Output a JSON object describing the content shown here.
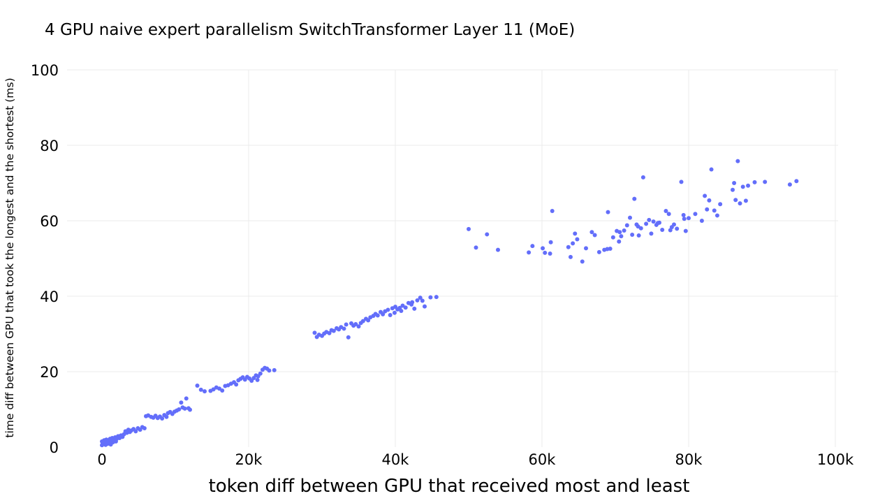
{
  "chart_data": {
    "type": "scatter",
    "title": "4 GPU naive expert parallelism SwitchTransformer Layer 11 (MoE)",
    "xlabel": "token diff between GPU that received most and least",
    "ylabel": "time diff between GPU that took the longest and the shortest (ms)",
    "xlim": [
      -5000,
      100000
    ],
    "ylim": [
      0,
      100
    ],
    "x_ticks": [
      0,
      20000,
      40000,
      60000,
      80000,
      100000
    ],
    "x_tick_labels": [
      "0",
      "20k",
      "40k",
      "60k",
      "80k",
      "100k"
    ],
    "y_ticks": [
      0,
      20,
      40,
      60,
      80,
      100
    ],
    "y_tick_labels": [
      "0",
      "20",
      "40",
      "60",
      "80",
      "100"
    ],
    "grid": true,
    "marker_color": "#636efa",
    "series": [
      {
        "points": [
          [
            0,
            0.5
          ],
          [
            0,
            1.5
          ],
          [
            100,
            1.0
          ],
          [
            200,
            0.8
          ],
          [
            300,
            1.8
          ],
          [
            400,
            1.2
          ],
          [
            500,
            0.6
          ],
          [
            600,
            2.0
          ],
          [
            700,
            1.4
          ],
          [
            800,
            0.9
          ],
          [
            900,
            1.7
          ],
          [
            1000,
            1.1
          ],
          [
            1100,
            2.2
          ],
          [
            1200,
            0.7
          ],
          [
            1300,
            1.6
          ],
          [
            1400,
            2.4
          ],
          [
            1500,
            1.3
          ],
          [
            1600,
            2.0
          ],
          [
            1700,
            1.8
          ],
          [
            1800,
            2.6
          ],
          [
            1900,
            1.5
          ],
          [
            2000,
            2.2
          ],
          [
            2200,
            2.9
          ],
          [
            2400,
            2.4
          ],
          [
            2600,
            3.1
          ],
          [
            2800,
            2.7
          ],
          [
            3000,
            3.4
          ],
          [
            3200,
            4.2
          ],
          [
            3400,
            3.8
          ],
          [
            3600,
            4.6
          ],
          [
            3800,
            4.0
          ],
          [
            4000,
            4.4
          ],
          [
            4300,
            4.8
          ],
          [
            4600,
            4.2
          ],
          [
            4900,
            5.0
          ],
          [
            5200,
            4.6
          ],
          [
            5500,
            5.3
          ],
          [
            5800,
            5.0
          ],
          [
            6000,
            8.2
          ],
          [
            6300,
            8.4
          ],
          [
            6700,
            8.0
          ],
          [
            7000,
            7.8
          ],
          [
            7300,
            8.3
          ],
          [
            7600,
            7.7
          ],
          [
            7900,
            8.1
          ],
          [
            8200,
            7.6
          ],
          [
            8500,
            8.5
          ],
          [
            8800,
            8.0
          ],
          [
            9000,
            9.0
          ],
          [
            9300,
            9.3
          ],
          [
            9600,
            8.8
          ],
          [
            9900,
            9.4
          ],
          [
            10200,
            9.7
          ],
          [
            10500,
            10.0
          ],
          [
            10800,
            11.8
          ],
          [
            11000,
            10.5
          ],
          [
            11300,
            10.2
          ],
          [
            11500,
            12.9
          ],
          [
            11800,
            10.3
          ],
          [
            12000,
            9.9
          ],
          [
            13000,
            16.3
          ],
          [
            13500,
            15.2
          ],
          [
            14000,
            14.8
          ],
          [
            14800,
            14.9
          ],
          [
            15200,
            15.3
          ],
          [
            15600,
            15.8
          ],
          [
            16000,
            15.5
          ],
          [
            16400,
            15.0
          ],
          [
            16800,
            16.2
          ],
          [
            17200,
            16.4
          ],
          [
            17600,
            16.8
          ],
          [
            18000,
            17.2
          ],
          [
            18300,
            16.6
          ],
          [
            18600,
            17.7
          ],
          [
            18900,
            18.1
          ],
          [
            19200,
            18.5
          ],
          [
            19500,
            17.9
          ],
          [
            19800,
            18.6
          ],
          [
            20100,
            18.2
          ],
          [
            20400,
            17.6
          ],
          [
            20700,
            18.3
          ],
          [
            21000,
            19.0
          ],
          [
            21300,
            18.8
          ],
          [
            21600,
            19.5
          ],
          [
            21900,
            20.5
          ],
          [
            22200,
            21.0
          ],
          [
            22500,
            20.8
          ],
          [
            22800,
            20.3
          ],
          [
            23500,
            20.4
          ],
          [
            21200,
            17.8
          ],
          [
            29000,
            30.3
          ],
          [
            29300,
            29.2
          ],
          [
            29600,
            29.8
          ],
          [
            30000,
            29.5
          ],
          [
            30300,
            30.1
          ],
          [
            30600,
            30.5
          ],
          [
            31000,
            30.2
          ],
          [
            31300,
            31.0
          ],
          [
            31600,
            30.8
          ],
          [
            32000,
            31.5
          ],
          [
            32300,
            31.2
          ],
          [
            32600,
            31.8
          ],
          [
            33000,
            31.4
          ],
          [
            33300,
            32.5
          ],
          [
            33600,
            29.1
          ],
          [
            34000,
            32.8
          ],
          [
            34300,
            32.2
          ],
          [
            34600,
            32.6
          ],
          [
            35000,
            32.0
          ],
          [
            35300,
            32.9
          ],
          [
            35600,
            33.4
          ],
          [
            36000,
            34.0
          ],
          [
            36300,
            33.6
          ],
          [
            36600,
            34.4
          ],
          [
            37000,
            34.8
          ],
          [
            37300,
            35.3
          ],
          [
            37600,
            34.9
          ],
          [
            38000,
            35.8
          ],
          [
            38300,
            35.2
          ],
          [
            38600,
            36.0
          ],
          [
            39000,
            36.4
          ],
          [
            39300,
            35.0
          ],
          [
            39600,
            36.8
          ],
          [
            40000,
            37.2
          ],
          [
            40300,
            36.5
          ],
          [
            40600,
            36.9
          ],
          [
            41000,
            37.5
          ],
          [
            41400,
            37.0
          ],
          [
            41800,
            38.2
          ],
          [
            42200,
            37.8
          ],
          [
            42600,
            36.7
          ],
          [
            43000,
            38.9
          ],
          [
            43400,
            39.6
          ],
          [
            43700,
            38.8
          ],
          [
            44000,
            37.3
          ],
          [
            44800,
            39.7
          ],
          [
            45600,
            39.8
          ],
          [
            42300,
            38.4
          ],
          [
            40800,
            36.1
          ],
          [
            39900,
            35.6
          ],
          [
            50000,
            57.8
          ],
          [
            51000,
            52.9
          ],
          [
            52500,
            56.4
          ],
          [
            54000,
            52.3
          ],
          [
            58200,
            51.6
          ],
          [
            58700,
            53.3
          ],
          [
            60100,
            52.7
          ],
          [
            60400,
            51.5
          ],
          [
            61100,
            51.3
          ],
          [
            61400,
            62.6
          ],
          [
            61200,
            54.3
          ],
          [
            63600,
            53.0
          ],
          [
            63900,
            50.4
          ],
          [
            64200,
            54.0
          ],
          [
            64500,
            56.6
          ],
          [
            64800,
            55.1
          ],
          [
            65500,
            49.2
          ],
          [
            66000,
            52.7
          ],
          [
            66800,
            57.0
          ],
          [
            67200,
            56.2
          ],
          [
            67800,
            51.7
          ],
          [
            68500,
            52.3
          ],
          [
            69000,
            62.3
          ],
          [
            69300,
            52.6
          ],
          [
            69700,
            55.6
          ],
          [
            70200,
            57.3
          ],
          [
            70500,
            54.5
          ],
          [
            70800,
            55.9
          ],
          [
            71200,
            57.4
          ],
          [
            71600,
            58.8
          ],
          [
            72000,
            60.8
          ],
          [
            72300,
            56.3
          ],
          [
            72600,
            65.8
          ],
          [
            72900,
            59.0
          ],
          [
            73200,
            56.1
          ],
          [
            73500,
            58.0
          ],
          [
            73800,
            71.5
          ],
          [
            74200,
            59.2
          ],
          [
            74600,
            60.2
          ],
          [
            74900,
            56.6
          ],
          [
            75200,
            59.8
          ],
          [
            75600,
            58.9
          ],
          [
            76000,
            59.5
          ],
          [
            76400,
            57.6
          ],
          [
            76900,
            62.6
          ],
          [
            77300,
            61.8
          ],
          [
            77700,
            58.3
          ],
          [
            78000,
            59.0
          ],
          [
            78400,
            57.9
          ],
          [
            79000,
            70.3
          ],
          [
            79300,
            61.5
          ],
          [
            79600,
            57.3
          ],
          [
            80000,
            60.7
          ],
          [
            80900,
            61.8
          ],
          [
            81800,
            60.0
          ],
          [
            82200,
            66.6
          ],
          [
            82500,
            63.0
          ],
          [
            82800,
            65.4
          ],
          [
            83100,
            73.6
          ],
          [
            83500,
            62.7
          ],
          [
            83900,
            61.4
          ],
          [
            84300,
            64.4
          ],
          [
            86000,
            68.2
          ],
          [
            86200,
            70.0
          ],
          [
            86400,
            65.5
          ],
          [
            86700,
            75.8
          ],
          [
            87000,
            64.6
          ],
          [
            87400,
            69.0
          ],
          [
            87800,
            65.3
          ],
          [
            88100,
            69.3
          ],
          [
            89000,
            70.2
          ],
          [
            90400,
            70.3
          ],
          [
            93800,
            69.6
          ],
          [
            94700,
            70.5
          ],
          [
            79400,
            60.5
          ],
          [
            77500,
            57.5
          ],
          [
            75800,
            59.4
          ],
          [
            73100,
            58.5
          ],
          [
            70600,
            57.0
          ],
          [
            68900,
            52.5
          ]
        ]
      }
    ]
  }
}
